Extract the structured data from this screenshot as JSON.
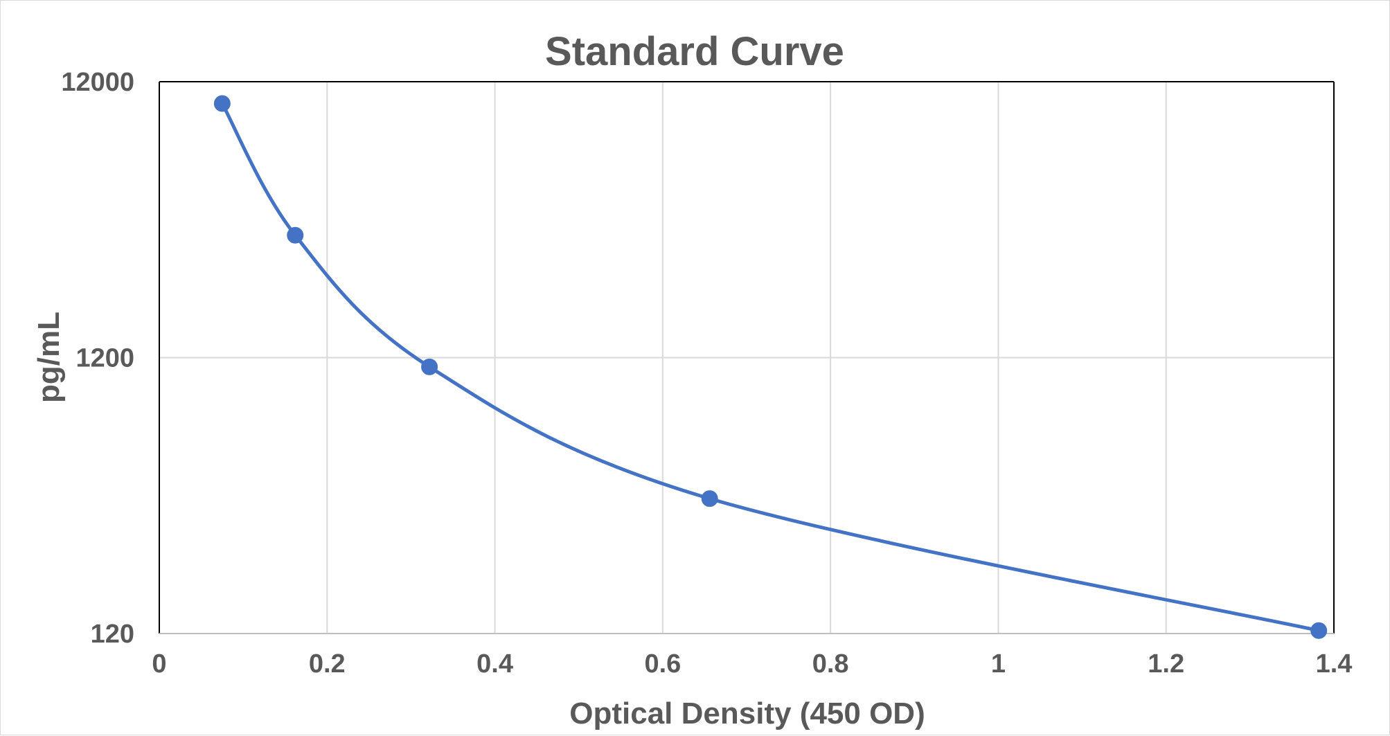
{
  "chart_data": {
    "type": "scatter",
    "title": "Standard Curve",
    "xlabel": "Optical Density (450 OD)",
    "ylabel": "pg/mL",
    "xlim": [
      0,
      1.4
    ],
    "ylim": [
      120,
      12000
    ],
    "y_scale": "log",
    "x_ticks": [
      "0",
      "0.2",
      "0.4",
      "0.6",
      "0.8",
      "1",
      "1.2",
      "1.4"
    ],
    "y_ticks": [
      "120",
      "1200",
      "12000"
    ],
    "grid": true,
    "line": "smoothed",
    "color": "#4472C4",
    "series": [
      {
        "x": [
          0.075,
          0.162,
          0.322,
          0.656,
          1.382
        ],
        "y": [
          10000,
          3333,
          1111,
          370,
          123
        ]
      }
    ]
  }
}
